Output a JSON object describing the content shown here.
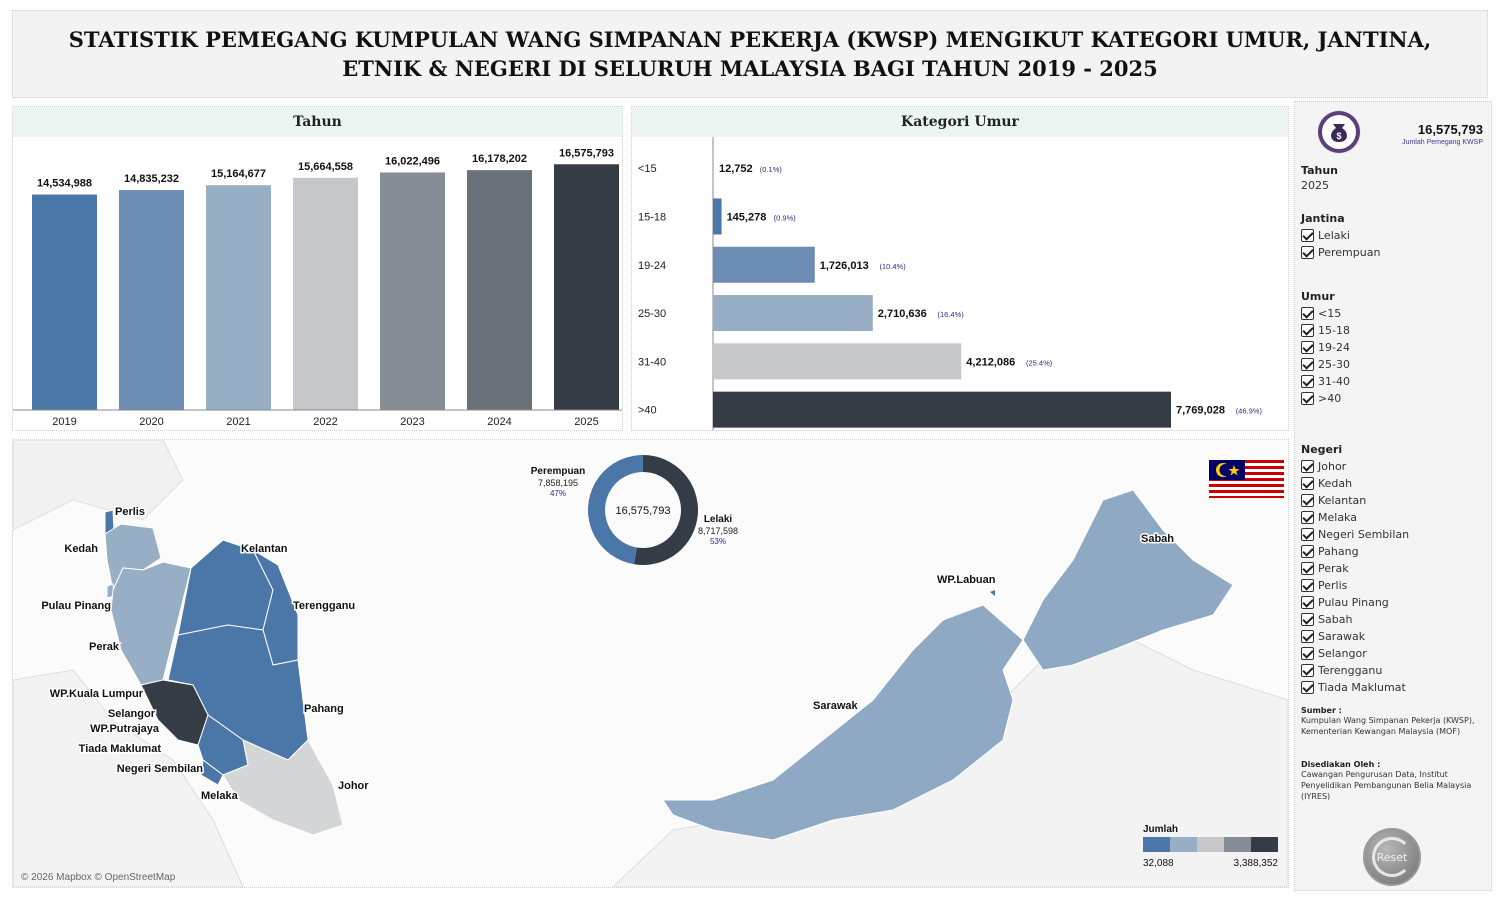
{
  "title": "STATISTIK PEMEGANG KUMPULAN WANG SIMPANAN PEKERJA (KWSP) MENGIKUT KATEGORI UMUR, JANTINA, ETNIK & NEGERI DI SELURUH MALAYSIA BAGI TAHUN 2019 - 2025",
  "colors": {
    "c1": "#4a76a8",
    "c2": "#6d8cb3",
    "c3": "#98aec4",
    "c4": "#c5c7cb",
    "c5": "#878d94",
    "c6": "#6b7178",
    "c7": "#353c45",
    "axis": "#888888",
    "pct": "#2b2b8a"
  },
  "chart_data": [
    {
      "type": "bar",
      "title": "Tahun",
      "categories": [
        "2019",
        "2020",
        "2021",
        "2022",
        "2023",
        "2024",
        "2025"
      ],
      "values": [
        14534988,
        14835232,
        15164677,
        15664558,
        16022496,
        16178202,
        16575793
      ],
      "value_labels": [
        "14,534,988",
        "14,835,232",
        "15,164,677",
        "15,664,558",
        "16,022,496",
        "16,178,202",
        "16,575,793"
      ],
      "ylim": [
        0,
        17200000
      ],
      "grid": false
    },
    {
      "type": "bar",
      "orientation": "horizontal",
      "title": "Kategori Umur",
      "categories": [
        "<15",
        "15-18",
        "19-24",
        "25-30",
        "31-40",
        ">40"
      ],
      "values": [
        12752,
        145278,
        1726013,
        2710636,
        4212086,
        7769028
      ],
      "value_labels": [
        "12,752",
        "145,278",
        "1,726,013",
        "2,710,636",
        "4,212,086",
        "7,769,028"
      ],
      "percent_labels": [
        "(0.1%)",
        "(0.9%)",
        "(10.4%)",
        "(16.4%)",
        "(25.4%)",
        "(46.9%)"
      ],
      "xlim": [
        0,
        7769028
      ],
      "grid": false
    },
    {
      "type": "pie",
      "donut": true,
      "center_label": "16,575,793",
      "categories": [
        "Lelaki",
        "Perempuan"
      ],
      "values": [
        8717598,
        7858195
      ],
      "value_labels": [
        "8,717,598",
        "7,858,195"
      ],
      "percent_labels": [
        "53%",
        "47%"
      ]
    }
  ],
  "map": {
    "states": [
      "Perlis",
      "Kedah",
      "Kelantan",
      "Pulau Pinang",
      "Terengganu",
      "Perak",
      "WP.Kuala Lumpur",
      "Selangor",
      "Pahang",
      "WP.Putrajaya",
      "Tiada Maklumat",
      "Negeri Sembilan",
      "Johor",
      "Melaka",
      "Sabah",
      "WP.Labuan",
      "Sarawak"
    ],
    "legend_title": "Jumlah",
    "legend_min": "32,088",
    "legend_max": "3,388,352",
    "credit": "© 2026 Mapbox © OpenStreetMap"
  },
  "sidebar": {
    "total": "16,575,793",
    "total_label": "Jumlah Pemegang KWSP",
    "tahun_title": "Tahun",
    "tahun_value": "2025",
    "jantina_title": "Jantina",
    "jantina": [
      "Lelaki",
      "Perempuan"
    ],
    "umur_title": "Umur",
    "umur": [
      "<15",
      "15-18",
      "19-24",
      "25-30",
      "31-40",
      ">40"
    ],
    "negeri_title": "Negeri",
    "negeri": [
      "Johor",
      "Kedah",
      "Kelantan",
      "Melaka",
      "Negeri Sembilan",
      "Pahang",
      "Perak",
      "Perlis",
      "Pulau Pinang",
      "Sabah",
      "Sarawak",
      "Selangor",
      "Terengganu",
      "Tiada Maklumat"
    ],
    "sumber_title": "Sumber :",
    "sumber_text": "Kumpulan Wang Simpanan Pekerja (KWSP), Kementerian Kewangan Malaysia (MOF)",
    "disediakan_title": "Disediakan Oleh :",
    "disediakan_text": "Cawangan Pengurusan Data, Institut Penyelidikan Pembangunan Belia Malaysia (IYRES)",
    "reset_label": "Reset"
  }
}
